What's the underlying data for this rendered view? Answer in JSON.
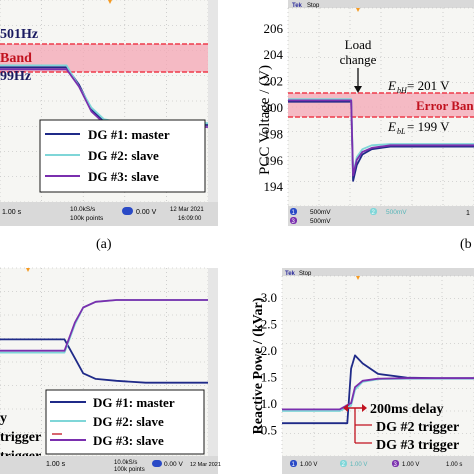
{
  "colors": {
    "screen": "#f6f6f3",
    "grid": "#b4b4b4",
    "band": "#ee3b4b",
    "band_fill": "#f4a6b4",
    "marker": "#f59a23",
    "navy": "#1f2a88",
    "cyan": "#7fd6d8",
    "purple": "#7a2fae",
    "panel_gray": "#d9d9d9"
  },
  "panel_a": {
    "label": "(a)",
    "ann_high": "501Hz",
    "ann_band": "Band",
    "ann_low": "99Hz",
    "legend": [
      "DG #1: master",
      "DG #2: slave",
      "DG #3: slave"
    ],
    "footer": {
      "timebase": "1.00 s",
      "rate_a": "10.0kS/s",
      "rate_b": "100k points",
      "trigger": "0.00 V",
      "date": "12 Mar  2021",
      "time": "16:09:00"
    }
  },
  "panel_b": {
    "label": "(b",
    "tek": "Tek",
    "stop": "Stop",
    "ylabel": "PCC Voltage / (V)",
    "load_change_1": "Load",
    "load_change_2": "change",
    "ebh": "E",
    "ebh_sub": "bH",
    "ebh_val": "= 201 V",
    "ebl": "E",
    "ebl_sub": "bL",
    "ebl_val": "= 199 V",
    "band_label": "Error Band",
    "ch": [
      "1",
      "2",
      "3"
    ],
    "ch_val": [
      "500mV",
      "500mV",
      "500mV"
    ],
    "corner": "1"
  },
  "panel_c": {
    "ann_y": "y",
    "ann_trigger1": "trigger",
    "ann_trigger2": "trigger",
    "legend": [
      "DG #1: master",
      "DG #2: slave",
      "DG #3: slave"
    ],
    "footer": {
      "timebase": "1.00 s",
      "rate_a": "10.0kS/s",
      "rate_b": "100k points",
      "trigger": "0.00 V",
      "date": "12 Mar  2021"
    }
  },
  "panel_d": {
    "tek": "Tek",
    "stop": "Stop",
    "ylabel": "Reactive Powe / (kVar)",
    "delay": "200ms delay",
    "dg2": "DG #2 trigger",
    "dg3": "DG #3 trigger",
    "ch": [
      "1",
      "2",
      "3"
    ],
    "ch_val": [
      "1.00 V",
      "1.00 V",
      "1.00 V"
    ],
    "footer_tb": "1.00 s"
  },
  "chart_data": [
    {
      "type": "line",
      "title": "",
      "ylabel": "",
      "ylim": [
        200.5,
        211
      ],
      "bands": [
        {
          "label": "Band",
          "low": 203.5,
          "high": 205.5
        }
      ],
      "series": [
        {
          "name": "DG #1: master",
          "color": "navy",
          "x": [
            0,
            1.3,
            1.6,
            1.9,
            2.2,
            2.5,
            3,
            3.6,
            5
          ],
          "y": [
            207.5,
            207.5,
            207.5,
            206.6,
            205.3,
            204.7,
            204.5,
            204.5,
            204.5
          ]
        },
        {
          "name": "DG #2: slave",
          "color": "cyan",
          "x": [
            0,
            1.3,
            1.6,
            1.9,
            2.2,
            2.5,
            3,
            3.6,
            5
          ],
          "y": [
            207.6,
            207.6,
            207.6,
            206.5,
            205.4,
            204.8,
            204.6,
            204.6,
            204.6
          ]
        },
        {
          "name": "DG #3: slave",
          "color": "purple",
          "x": [
            0,
            1.3,
            1.6,
            1.9,
            2.2,
            2.5,
            3,
            3.6,
            5
          ],
          "y": [
            207.4,
            207.4,
            207.4,
            206.5,
            205.2,
            204.6,
            204.4,
            204.4,
            204.4
          ]
        }
      ]
    },
    {
      "type": "line",
      "title": "",
      "ylabel": "PCC Voltage / (V)",
      "ylim": [
        192.5,
        207.5
      ],
      "yticks": [
        194,
        196,
        198,
        200,
        202,
        204,
        206
      ],
      "bands": [
        {
          "label": "Error Band",
          "low": 199,
          "high": 201
        }
      ],
      "series": [
        {
          "name": "",
          "color": "navy",
          "x": [
            0,
            0.34,
            0.35,
            0.37,
            0.4,
            0.45,
            0.55,
            0.7,
            1
          ],
          "y": [
            200.4,
            200.4,
            194.4,
            195.6,
            196.4,
            196.8,
            197.0,
            197.0,
            197.0
          ]
        },
        {
          "name": "",
          "color": "cyan",
          "x": [
            0,
            0.34,
            0.35,
            0.37,
            0.4,
            0.45,
            0.55,
            0.7,
            1
          ],
          "y": [
            200.6,
            200.6,
            195.0,
            196.2,
            196.8,
            197.1,
            197.2,
            197.2,
            197.2
          ]
        },
        {
          "name": "",
          "color": "purple",
          "x": [
            0,
            0.34,
            0.35,
            0.37,
            0.4,
            0.45,
            0.55,
            0.7,
            1
          ],
          "y": [
            200.5,
            200.5,
            194.8,
            196.0,
            196.6,
            196.9,
            197.1,
            197.1,
            197.1
          ]
        }
      ]
    },
    {
      "type": "line",
      "title": "",
      "ylabel": "",
      "series": [
        {
          "name": "DG #1: master",
          "color": "navy",
          "x": [
            0,
            1.55,
            1.8,
            2.0,
            2.3,
            2.8,
            3.5,
            5
          ],
          "y": [
            0.62,
            0.62,
            0.52,
            0.44,
            0.41,
            0.4,
            0.39,
            0.39
          ]
        },
        {
          "name": "DG #2: slave",
          "color": "cyan",
          "x": [
            0,
            1.55,
            1.8,
            2.0,
            2.3,
            2.8,
            3.5,
            5
          ],
          "y": [
            0.55,
            0.55,
            0.7,
            0.79,
            0.82,
            0.83,
            0.83,
            0.83
          ]
        },
        {
          "name": "DG #3: slave",
          "color": "purple",
          "x": [
            0,
            1.55,
            1.8,
            2.0,
            2.3,
            2.8,
            3.5,
            5
          ],
          "y": [
            0.56,
            0.56,
            0.71,
            0.79,
            0.82,
            0.83,
            0.83,
            0.83
          ]
        }
      ]
    },
    {
      "type": "line",
      "title": "",
      "ylabel": "Reactive Powe / (kVar)",
      "ylim": [
        0.0,
        3.4
      ],
      "yticks": [
        0.5,
        1.0,
        1.5,
        2.0,
        2.5,
        3.0
      ],
      "series": [
        {
          "name": "",
          "color": "navy",
          "x": [
            0,
            0.34,
            0.36,
            0.38,
            0.42,
            0.5,
            0.65,
            0.8,
            1
          ],
          "y": [
            0.62,
            0.62,
            1.65,
            1.9,
            1.75,
            1.55,
            1.48,
            1.47,
            1.47
          ]
        },
        {
          "name": "",
          "color": "cyan",
          "x": [
            0,
            0.3,
            0.36,
            0.38,
            0.42,
            0.5,
            0.65,
            0.8,
            1
          ],
          "y": [
            0.85,
            0.85,
            0.95,
            1.25,
            1.4,
            1.45,
            1.46,
            1.46,
            1.46
          ]
        },
        {
          "name": "",
          "color": "purple",
          "x": [
            0,
            0.3,
            0.36,
            0.38,
            0.42,
            0.5,
            0.65,
            0.8,
            1
          ],
          "y": [
            0.88,
            0.88,
            1.0,
            1.3,
            1.42,
            1.46,
            1.47,
            1.47,
            1.47
          ]
        }
      ]
    }
  ]
}
